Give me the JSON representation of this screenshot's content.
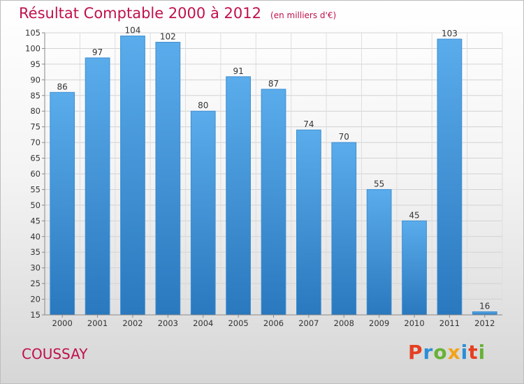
{
  "chart_data": {
    "type": "bar",
    "title": "Résultat Comptable 2000 à 2012",
    "subtitle": "(en milliers d'€)",
    "xlabel": "",
    "ylabel": "",
    "categories": [
      "2000",
      "2001",
      "2002",
      "2003",
      "2004",
      "2005",
      "2006",
      "2007",
      "2008",
      "2009",
      "2010",
      "2011",
      "2012"
    ],
    "values": [
      86,
      97,
      104,
      102,
      80,
      91,
      87,
      74,
      70,
      55,
      45,
      103,
      16
    ],
    "ylim": [
      15,
      105
    ],
    "ytick_step": 5,
    "grid": true,
    "bar_color": "#4a9fe0",
    "bar_color_dark": "#2a78be"
  },
  "footer": {
    "city": "COUSSAY",
    "logo": "Proxiti"
  },
  "colors": {
    "title": "#c0114a",
    "logo_letters": [
      "#e53f22",
      "#2b8fd6",
      "#67b238",
      "#f2a31a",
      "#2b8fd6",
      "#e53f22",
      "#67b238"
    ]
  }
}
